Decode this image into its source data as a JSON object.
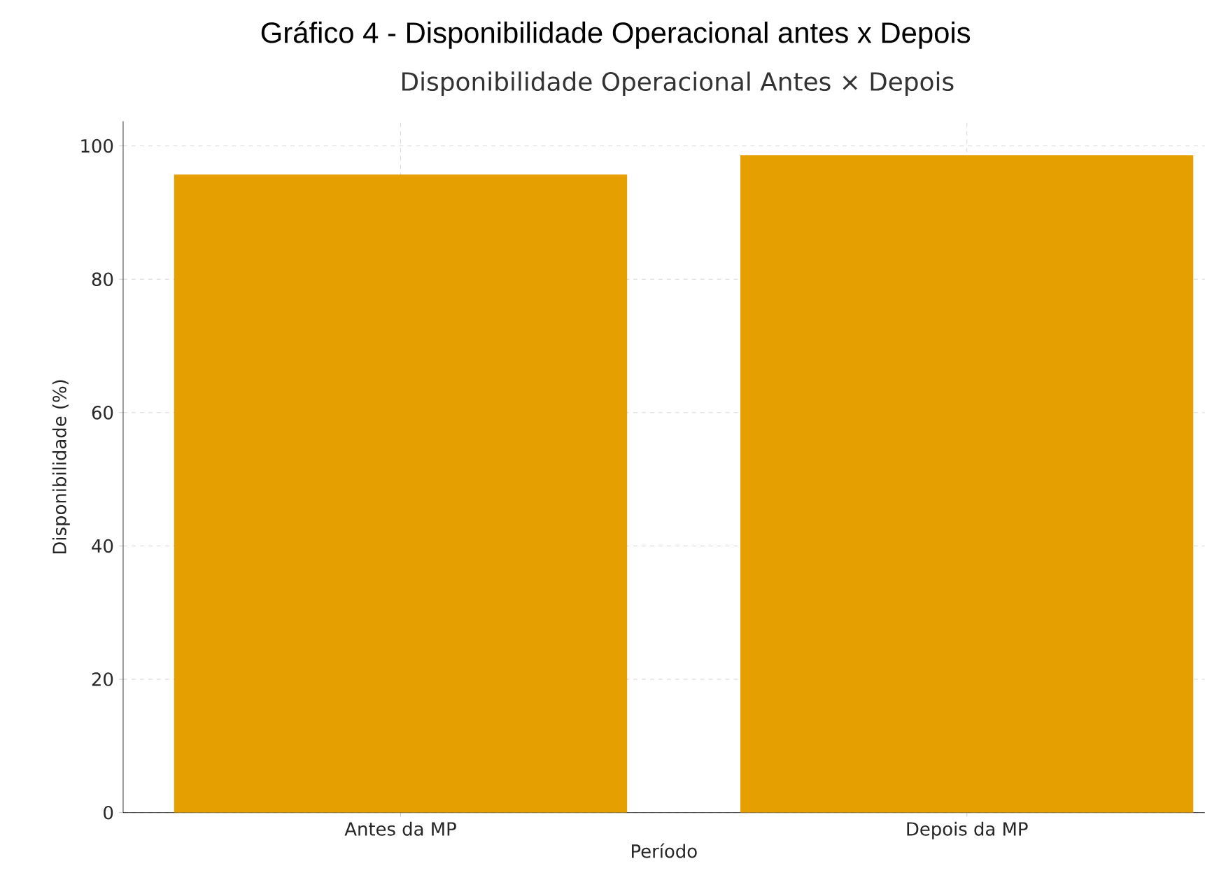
{
  "chart_data": {
    "type": "bar",
    "title": "Gráfico 4 - Disponibilidade Operacional antes x Depois",
    "subtitle": "Disponibilidade Operacional Antes × Depois",
    "xlabel": "Período",
    "ylabel": "Disponibilidade (%)",
    "categories": [
      "Antes da MP",
      "Depois da MP"
    ],
    "values": [
      95.7,
      98.6
    ],
    "color": "#e5a000",
    "ylim": [
      0,
      103.7
    ],
    "yticks": [
      0,
      20,
      40,
      60,
      80,
      100
    ],
    "grid": true
  }
}
